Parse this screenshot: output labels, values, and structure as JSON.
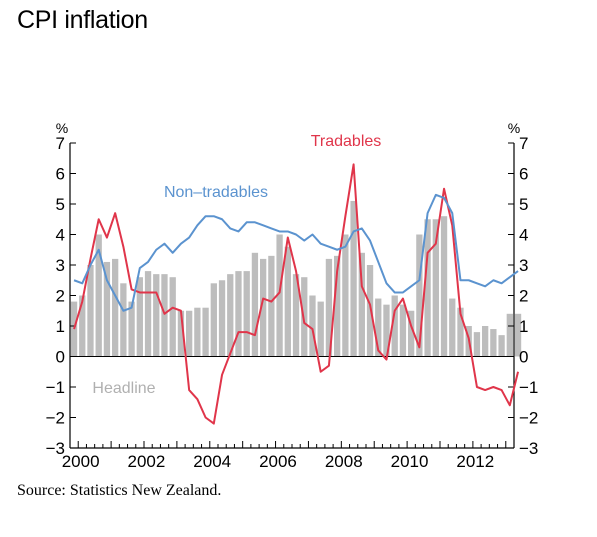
{
  "page": {
    "title": "CPI inflation",
    "source": "Source: Statistics New Zealand."
  },
  "chart_data": {
    "type": "bar+line",
    "title": "CPI inflation",
    "y_unit_left": "%",
    "y_unit_right": "%",
    "ylim": [
      -3,
      7
    ],
    "yticks": [
      -3,
      -2,
      -1,
      0,
      1,
      2,
      3,
      4,
      5,
      6,
      7
    ],
    "xlim": [
      1999.75,
      2013.25
    ],
    "xticks": [
      2000,
      2002,
      2004,
      2006,
      2008,
      2010,
      2012
    ],
    "xtick_labels": [
      "2000",
      "2002",
      "2004",
      "2006",
      "2008",
      "2010",
      "2012"
    ],
    "grid": false,
    "colors": {
      "headline": "#bdbdbd",
      "tradables": "#e0354a",
      "non_tradables": "#5b93cf"
    },
    "x": [
      1999.75,
      2000.0,
      2000.25,
      2000.5,
      2000.75,
      2001.0,
      2001.25,
      2001.5,
      2001.75,
      2002.0,
      2002.25,
      2002.5,
      2002.75,
      2003.0,
      2003.25,
      2003.5,
      2003.75,
      2004.0,
      2004.25,
      2004.5,
      2004.75,
      2005.0,
      2005.25,
      2005.5,
      2005.75,
      2006.0,
      2006.25,
      2006.5,
      2006.75,
      2007.0,
      2007.25,
      2007.5,
      2007.75,
      2008.0,
      2008.25,
      2008.5,
      2008.75,
      2009.0,
      2009.25,
      2009.5,
      2009.75,
      2010.0,
      2010.25,
      2010.5,
      2010.75,
      2011.0,
      2011.25,
      2011.5,
      2011.75,
      2012.0,
      2012.25,
      2012.5,
      2012.75,
      2013.0,
      2013.25
    ],
    "series": [
      {
        "name": "Headline",
        "kind": "bar",
        "values": [
          1.8,
          2.0,
          3.0,
          4.0,
          3.1,
          3.2,
          2.4,
          1.8,
          2.6,
          2.8,
          2.7,
          2.7,
          2.6,
          1.5,
          1.5,
          1.6,
          1.6,
          2.4,
          2.5,
          2.7,
          2.8,
          2.8,
          3.4,
          3.2,
          3.3,
          4.0,
          3.6,
          2.7,
          2.6,
          2.0,
          1.8,
          3.2,
          3.3,
          4.0,
          5.1,
          3.4,
          3.0,
          1.9,
          1.7,
          2.0,
          1.7,
          1.5,
          4.0,
          4.5,
          4.5,
          4.6,
          1.9,
          1.6,
          1.0,
          0.8,
          1.0,
          0.9,
          0.7,
          1.4,
          1.4
        ]
      },
      {
        "name": "Tradables",
        "kind": "line",
        "values": [
          0.9,
          1.8,
          3.2,
          4.5,
          3.9,
          4.7,
          3.6,
          2.2,
          2.1,
          2.1,
          2.1,
          1.4,
          1.6,
          1.5,
          -1.1,
          -1.4,
          -2.0,
          -2.2,
          -0.6,
          0.1,
          0.8,
          0.8,
          0.7,
          1.9,
          1.8,
          2.1,
          3.9,
          2.8,
          1.1,
          0.9,
          -0.5,
          -0.3,
          2.8,
          4.6,
          6.3,
          2.3,
          1.7,
          0.2,
          -0.1,
          1.5,
          1.9,
          1.0,
          0.3,
          3.4,
          3.7,
          5.5,
          4.3,
          1.4,
          0.6,
          -1.0,
          -1.1,
          -1.0,
          -1.1,
          -1.6,
          -0.5
        ]
      },
      {
        "name": "Non–tradables",
        "kind": "line",
        "values": [
          2.5,
          2.4,
          3.0,
          3.5,
          2.5,
          2.0,
          1.5,
          1.6,
          2.9,
          3.1,
          3.5,
          3.7,
          3.4,
          3.7,
          3.9,
          4.3,
          4.6,
          4.6,
          4.5,
          4.2,
          4.1,
          4.4,
          4.4,
          4.3,
          4.2,
          4.1,
          4.1,
          4.0,
          3.8,
          4.0,
          3.7,
          3.6,
          3.5,
          3.6,
          4.1,
          4.2,
          3.8,
          3.1,
          2.4,
          2.1,
          2.1,
          2.3,
          2.5,
          4.7,
          5.3,
          5.2,
          4.7,
          2.5,
          2.5,
          2.4,
          2.3,
          2.5,
          2.4,
          2.6,
          2.8
        ]
      }
    ],
    "annotations": [
      {
        "text": "Tradables",
        "series": "Tradables"
      },
      {
        "text": "Non–tradables",
        "series": "Non–tradables"
      },
      {
        "text": "Headline",
        "series": "Headline"
      }
    ]
  }
}
